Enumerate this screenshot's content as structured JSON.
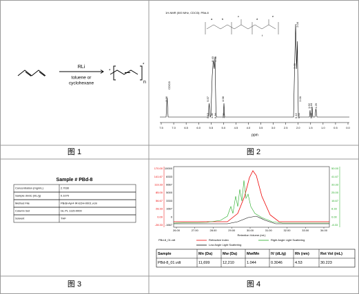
{
  "figures": [
    {
      "caption": "图 1",
      "reagent": "RLi",
      "solvent": [
        "toluene or",
        "cyclohexane"
      ],
      "end_group": "*",
      "repeat": "n"
    },
    {
      "caption": "图 2",
      "title": "1H-NMR (500 MHz, CDCl3): PBd-8",
      "x_label": "ppm",
      "x_ticks": [
        "7.5",
        "7.0",
        "6.5",
        "6.0",
        "5.5",
        "5.0",
        "4.5",
        "4.0",
        "3.5",
        "3.0",
        "2.5",
        "2.0",
        "1.5",
        "1.0",
        "0.5",
        "0.0"
      ],
      "solvent_peak": "CDCl3",
      "peaks": [
        "7.26",
        "5.57",
        "5.43",
        "5.38",
        "4.98",
        "2.09",
        "2.04",
        "2.00",
        "1.52",
        "1.44",
        "1.29"
      ],
      "integrals": [
        "0.13",
        "1.00",
        "0.34",
        "1.00",
        "0.12",
        "0.34",
        "0.25"
      ]
    },
    {
      "caption": "图 3",
      "title": "Sample # PBd-8",
      "rows": [
        [
          "Concentration (mg/mL)",
          "2.7030"
        ],
        [
          "Sample dn/dc (mL/g)",
          "0.1070"
        ],
        [
          "Method File",
          "PBd8-Apr4 IR-EDH-0001.vcm"
        ],
        [
          "Column Set",
          "GL PL 1115-0000"
        ],
        [
          "Solvent",
          "THF"
        ]
      ]
    },
    {
      "caption": "图 4",
      "axis_ri": [
        "170.00",
        "141.67",
        "113.33",
        "85.00",
        "56.67",
        "28.33",
        "0.00",
        "-28.33"
      ],
      "axis_ls": [
        "10000",
        "8333",
        "6667",
        "5000",
        "3333",
        "1667",
        "0",
        "-1667"
      ],
      "axis_ra": [
        "50.00",
        "41.67",
        "33.33",
        "25.00",
        "16.67",
        "8.33",
        "0.00",
        "-8.33"
      ],
      "x_ticks": [
        "26.00",
        "27.00",
        "28.00",
        "29.00",
        "30.00",
        "31.00",
        "32.00",
        "33.00",
        "34.00"
      ],
      "x_label": "Retention Volume (mL)",
      "file": "PBd-8_01.vdt",
      "legend": [
        "Refractive Index",
        "Right Angle Light Scattering",
        "Low Angle Light Scattering"
      ],
      "table": {
        "header": [
          "Sample",
          "Mn (Da)",
          "Mw (Da)",
          "Mw/Mn",
          "IV (dL/g)",
          "Rh (nm)",
          "Ret Vol (mL)"
        ],
        "row": [
          "PBd-8_01.vdt",
          "11,699",
          "12,210",
          "1.044",
          "0.3046",
          "4.53",
          "30.223"
        ]
      }
    }
  ]
}
